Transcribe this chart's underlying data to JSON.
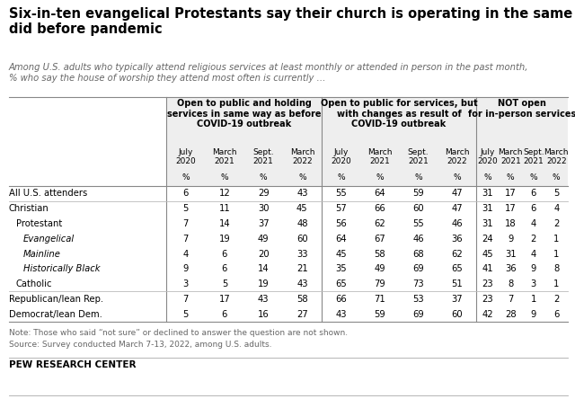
{
  "title": "Six-in-ten evangelical Protestants say their church is operating in the same way it\ndid before pandemic",
  "subtitle": "Among U.S. adults who typically attend religious services at least monthly or attended in person in the past month,\n% who say the house of worship they attend most often is currently …",
  "col_groups": [
    {
      "label": "Open to public and holding\nservices in same way as before\nCOVID-19 outbreak",
      "cols": [
        "July\n2020",
        "March\n2021",
        "Sept.\n2021",
        "March\n2022"
      ]
    },
    {
      "label": "Open to public for services, but\nwith changes as result of\nCOVID-19 outbreak",
      "cols": [
        "July\n2020",
        "March\n2021",
        "Sept.\n2021",
        "March\n2022"
      ]
    },
    {
      "label": "NOT open\nfor in-person services",
      "cols": [
        "July\n2020",
        "March\n2021",
        "Sept.\n2021",
        "March\n2022"
      ]
    }
  ],
  "rows": [
    {
      "label": "All U.S. attenders",
      "indent": 0,
      "italic": false,
      "values": [
        6,
        12,
        29,
        43,
        55,
        64,
        59,
        47,
        31,
        17,
        6,
        5
      ],
      "sep_above": false
    },
    {
      "label": "Christian",
      "indent": 0,
      "italic": false,
      "values": [
        5,
        11,
        30,
        45,
        57,
        66,
        60,
        47,
        31,
        17,
        6,
        4
      ],
      "sep_above": true
    },
    {
      "label": "Protestant",
      "indent": 1,
      "italic": false,
      "values": [
        7,
        14,
        37,
        48,
        56,
        62,
        55,
        46,
        31,
        18,
        4,
        2
      ],
      "sep_above": false
    },
    {
      "label": "Evangelical",
      "indent": 2,
      "italic": true,
      "values": [
        7,
        19,
        49,
        60,
        64,
        67,
        46,
        36,
        24,
        9,
        2,
        1
      ],
      "sep_above": false
    },
    {
      "label": "Mainline",
      "indent": 2,
      "italic": true,
      "values": [
        4,
        6,
        20,
        33,
        45,
        58,
        68,
        62,
        45,
        31,
        4,
        1
      ],
      "sep_above": false
    },
    {
      "label": "Historically Black",
      "indent": 2,
      "italic": true,
      "values": [
        9,
        6,
        14,
        21,
        35,
        49,
        69,
        65,
        41,
        36,
        9,
        8
      ],
      "sep_above": false
    },
    {
      "label": "Catholic",
      "indent": 1,
      "italic": false,
      "values": [
        3,
        5,
        19,
        43,
        65,
        79,
        73,
        51,
        23,
        8,
        3,
        1
      ],
      "sep_above": false
    },
    {
      "label": "Republican/lean Rep.",
      "indent": 0,
      "italic": false,
      "values": [
        7,
        17,
        43,
        58,
        66,
        71,
        53,
        37,
        23,
        7,
        1,
        2
      ],
      "sep_above": true
    },
    {
      "label": "Democrat/lean Dem.",
      "indent": 0,
      "italic": false,
      "values": [
        5,
        6,
        16,
        27,
        43,
        59,
        69,
        60,
        42,
        28,
        9,
        6
      ],
      "sep_above": false
    }
  ],
  "note_line1": "Note: Those who said “not sure” or declined to answer the question are not shown.",
  "note_line2": "Source: Survey conducted March 7-13, 2022, among U.S. adults.",
  "footer": "PEW RESEARCH CENTER",
  "bg_color": "#ffffff",
  "text_color": "#000000",
  "gray_text": "#666666",
  "sep_color": "#bbbbbb",
  "strong_sep_color": "#555555"
}
